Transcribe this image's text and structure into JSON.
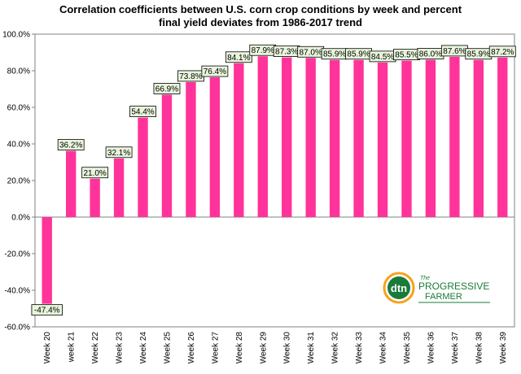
{
  "chart_data": {
    "type": "bar",
    "title_lines": [
      "Correlation coefficients between U.S. corn crop conditions by week and percent",
      "final yield deviates  from 1986-2017 trend"
    ],
    "categories": [
      "Week 20",
      "week 21",
      "Week 22",
      "Week 23",
      "Week 24",
      "Week 25",
      "Week 26",
      "Week 27",
      "Week 28",
      "Week 29",
      "Week 30",
      "Week 31",
      "Week 32",
      "Week 33",
      "Week 34",
      "Week 35",
      "Week 36",
      "Week 37",
      "Week 38",
      "Week 39"
    ],
    "values": [
      -47.4,
      36.2,
      21.0,
      32.1,
      54.4,
      66.9,
      73.8,
      76.4,
      84.1,
      87.9,
      87.3,
      87.0,
      85.9,
      85.9,
      84.5,
      85.5,
      86.0,
      87.6,
      85.9,
      87.2
    ],
    "data_labels": [
      "-47.4%",
      "36.2%",
      "21.0%",
      "32.1%",
      "54.4%",
      "66.9%",
      "73.8%",
      "76.4%",
      "84.1%",
      "87.9%",
      "87.3%",
      "87.0%",
      "85.9%",
      "85.9%",
      "84.5%",
      "85.5%",
      "86.0%",
      "87.6%",
      "85.9%",
      "87.2%"
    ],
    "ylim": [
      -60,
      100
    ],
    "yticks": [
      "100.0%",
      "80.0%",
      "60.0%",
      "40.0%",
      "20.0%",
      "0.0%",
      "-20.0%",
      "-40.0%",
      "-60.0%"
    ],
    "ytick_values": [
      100,
      80,
      60,
      40,
      20,
      0,
      -20,
      -40,
      -60
    ],
    "grid": false,
    "xlabel": "",
    "ylabel": "",
    "bar_color": "#ff3399",
    "label_bg_color": "#e8f5dc"
  },
  "logo": {
    "mark_text": "dtn",
    "word_the": "The",
    "word_progressive": "PROGRESSIVE",
    "word_farmer": "FARMER",
    "primary_color": "#1a7a3a",
    "accent_color": "#f7a21b"
  }
}
